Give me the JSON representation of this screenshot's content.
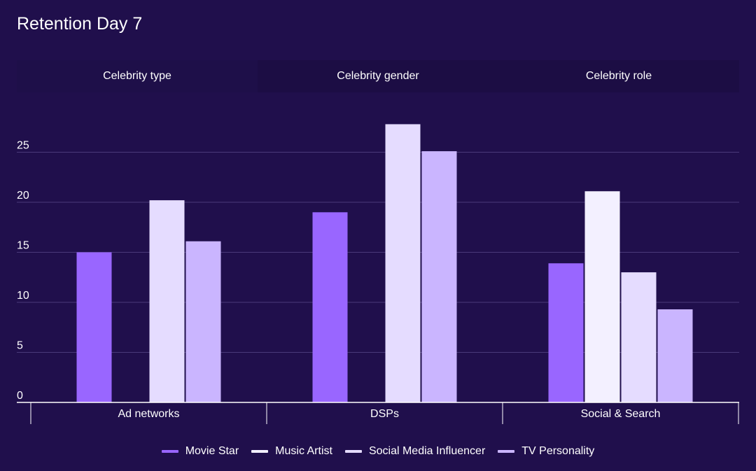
{
  "header": {
    "title": "Retention Day 7"
  },
  "tabs": [
    {
      "label": "Celebrity type",
      "active": true
    },
    {
      "label": "Celebrity gender",
      "active": false
    },
    {
      "label": "Celebrity role",
      "active": false
    }
  ],
  "chart_data": {
    "type": "bar",
    "title": "Retention Day 7",
    "xlabel": "",
    "ylabel": "",
    "ylim": [
      0,
      30
    ],
    "yticks": [
      0,
      5,
      10,
      15,
      20,
      25
    ],
    "grid": true,
    "legend_position": "bottom-center",
    "categories": [
      "Ad networks",
      "DSPs",
      "Social & Search"
    ],
    "series": [
      {
        "name": "Movie Star",
        "color": "#9966ff",
        "values": [
          15,
          19,
          13.9
        ]
      },
      {
        "name": "Music Artist",
        "color": "#f3f0ff",
        "values": [
          null,
          null,
          21.1
        ]
      },
      {
        "name": "Social Media Influencer",
        "color": "#e5dcff",
        "values": [
          20.2,
          27.8,
          13
        ]
      },
      {
        "name": "TV Personality",
        "color": "#cab5ff",
        "values": [
          16.1,
          25.1,
          9.3
        ]
      }
    ]
  }
}
